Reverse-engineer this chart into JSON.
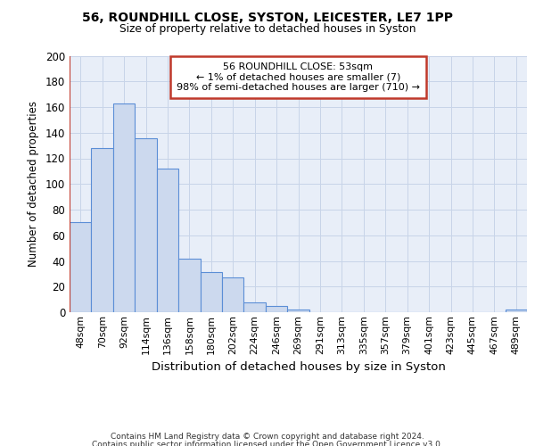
{
  "title1": "56, ROUNDHILL CLOSE, SYSTON, LEICESTER, LE7 1PP",
  "title2": "Size of property relative to detached houses in Syston",
  "xlabel": "Distribution of detached houses by size in Syston",
  "ylabel": "Number of detached properties",
  "footer1": "Contains HM Land Registry data © Crown copyright and database right 2024.",
  "footer2": "Contains public sector information licensed under the Open Government Licence v3.0.",
  "bar_labels": [
    "48sqm",
    "70sqm",
    "92sqm",
    "114sqm",
    "136sqm",
    "158sqm",
    "180sqm",
    "202sqm",
    "224sqm",
    "246sqm",
    "269sqm",
    "291sqm",
    "313sqm",
    "335sqm",
    "357sqm",
    "379sqm",
    "401sqm",
    "423sqm",
    "445sqm",
    "467sqm",
    "489sqm"
  ],
  "bar_values": [
    70,
    128,
    163,
    136,
    112,
    42,
    31,
    27,
    8,
    5,
    2,
    0,
    0,
    0,
    0,
    0,
    0,
    0,
    0,
    0,
    2
  ],
  "bar_color": "#ccd9ee",
  "bar_edge_color": "#5b8ed6",
  "bar_linewidth": 0.8,
  "vline_color": "#c0392b",
  "ylim": [
    0,
    200
  ],
  "yticks": [
    0,
    20,
    40,
    60,
    80,
    100,
    120,
    140,
    160,
    180,
    200
  ],
  "grid_color": "#c8d4e8",
  "annotation_text": "56 ROUNDHILL CLOSE: 53sqm\n← 1% of detached houses are smaller (7)\n98% of semi-detached houses are larger (710) →",
  "annotation_box_color": "#ffffff",
  "annotation_box_edge": "#c0392b",
  "bg_color": "#e8eef8"
}
